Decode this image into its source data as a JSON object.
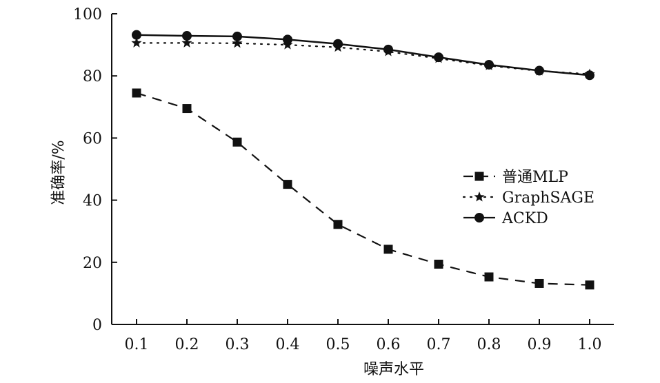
{
  "chart_data": {
    "type": "line",
    "xlabel": "噪声水平",
    "ylabel": "准确率/%",
    "x": [
      0.1,
      0.2,
      0.3,
      0.4,
      0.5,
      0.6,
      0.7,
      0.8,
      0.9,
      1.0
    ],
    "x_tick_labels": [
      "0.1",
      "0.2",
      "0.3",
      "0.4",
      "0.5",
      "0.6",
      "0.7",
      "0.8",
      "0.9",
      "1.0"
    ],
    "ylim": [
      0,
      100
    ],
    "y_ticks": [
      0,
      20,
      40,
      60,
      80,
      100
    ],
    "y_tick_labels": [
      "0",
      "20",
      "40",
      "60",
      "80",
      "100"
    ],
    "legend_position": "right-middle",
    "grid": false,
    "series": [
      {
        "name": "普通MLP",
        "marker": "square",
        "line_style": "dashed",
        "color": "#111111",
        "values": [
          74.5,
          69.5,
          58.7,
          45.1,
          32.2,
          24.2,
          19.4,
          15.3,
          13.2,
          12.7
        ]
      },
      {
        "name": "GraphSAGE",
        "marker": "star",
        "line_style": "dotted",
        "color": "#111111",
        "values": [
          90.6,
          90.6,
          90.5,
          90.0,
          89.2,
          87.8,
          85.6,
          83.3,
          81.6,
          80.6
        ]
      },
      {
        "name": "ACKD",
        "marker": "circle",
        "line_style": "solid",
        "color": "#111111",
        "values": [
          93.2,
          92.9,
          92.7,
          91.7,
          90.3,
          88.5,
          86.0,
          83.6,
          81.7,
          80.2
        ]
      }
    ]
  }
}
